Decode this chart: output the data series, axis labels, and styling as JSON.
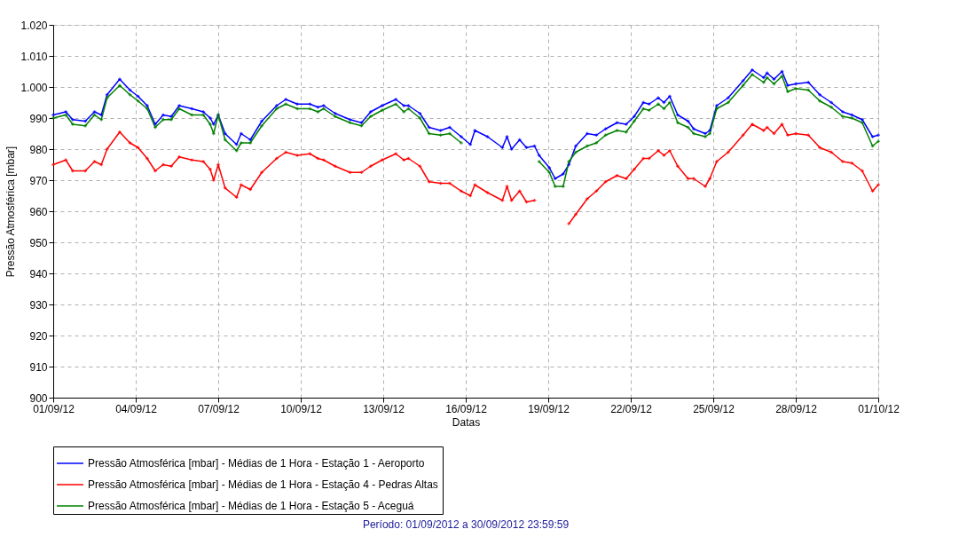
{
  "chart_data": {
    "type": "line",
    "xlabel": "Datas",
    "ylabel": "Pressão Atmosférica [mbar]",
    "annotations": [
      "Período: 01/09/2012 a 30/09/2012 23:59:59"
    ],
    "x": [
      "2012-09-01T00:00",
      "2012-09-01T11:00",
      "2012-09-01T17:00",
      "2012-09-02T04:00",
      "2012-09-02T12:00",
      "2012-09-02T18:00",
      "2012-09-02T23:00",
      "2012-09-03T10:00",
      "2012-09-03T19:00",
      "2012-09-04T02:00",
      "2012-09-04T10:00",
      "2012-09-04T17:00",
      "2012-09-05T00:00",
      "2012-09-05T07:00",
      "2012-09-05T14:00",
      "2012-09-06T01:00",
      "2012-09-06T11:00",
      "2012-09-06T17:00",
      "2012-09-06T20:00",
      "2012-09-07T00:00",
      "2012-09-07T06:00",
      "2012-09-07T16:00",
      "2012-09-07T20:00",
      "2012-09-08T04:00",
      "2012-09-08T14:00",
      "2012-09-09T03:00",
      "2012-09-09T11:00",
      "2012-09-09T21:00",
      "2012-09-10T08:00",
      "2012-09-10T15:00",
      "2012-09-10T20:00",
      "2012-09-11T06:00",
      "2012-09-11T19:00",
      "2012-09-12T05:00",
      "2012-09-12T13:00",
      "2012-09-12T23:00",
      "2012-09-13T11:00",
      "2012-09-13T18:00",
      "2012-09-13T22:00",
      "2012-09-14T08:00",
      "2012-09-14T16:00",
      "2012-09-15T02:00",
      "2012-09-15T10:00",
      "2012-09-15T20:00",
      "2012-09-16T04:00",
      "2012-09-16T08:00",
      "2012-09-16T19:00",
      "2012-09-17T08:00",
      "2012-09-17T12:00",
      "2012-09-17T16:00",
      "2012-09-17T23:00",
      "2012-09-18T05:00",
      "2012-09-18T12:00",
      "2012-09-18T16:00",
      "2012-09-19T01:00",
      "2012-09-19T06:00",
      "2012-09-19T13:00",
      "2012-09-19T18:00",
      "2012-09-20T00:00",
      "2012-09-20T10:00",
      "2012-09-20T18:00",
      "2012-09-21T02:00",
      "2012-09-21T12:00",
      "2012-09-21T20:00",
      "2012-09-22T03:00",
      "2012-09-22T11:00",
      "2012-09-22T16:00",
      "2012-09-23T00:00",
      "2012-09-23T05:00",
      "2012-09-23T10:00",
      "2012-09-23T17:00",
      "2012-09-24T02:00",
      "2012-09-24T07:00",
      "2012-09-24T17:00",
      "2012-09-24T21:00",
      "2012-09-25T03:00",
      "2012-09-25T13:00",
      "2012-09-26T02:00",
      "2012-09-26T10:00",
      "2012-09-26T20:00",
      "2012-09-26T23:00",
      "2012-09-27T05:00",
      "2012-09-27T12:00",
      "2012-09-27T17:00",
      "2012-09-28T00:00",
      "2012-09-28T11:00",
      "2012-09-28T21:00",
      "2012-09-29T07:00",
      "2012-09-29T17:00",
      "2012-09-30T01:00",
      "2012-09-30T10:00",
      "2012-09-30T19:00",
      "2012-10-01T00:00"
    ],
    "series": [
      {
        "name": "Pressão Atmosférica [mbar] - Médias de 1 Hora - Estação 1 - Aeroporto",
        "color": "#0000ff",
        "values": [
          991,
          992,
          989.5,
          989,
          992,
          991,
          997.5,
          1002.5,
          999,
          997,
          994,
          988,
          991,
          990.5,
          994,
          993,
          992,
          990,
          988,
          991,
          985,
          981.5,
          985,
          983,
          989,
          994,
          996,
          994.5,
          994.5,
          993.5,
          994,
          991.5,
          989.5,
          988.5,
          992,
          994,
          996,
          994,
          994,
          991.5,
          987,
          986,
          987,
          984,
          981.5,
          986,
          984,
          980.5,
          984,
          980,
          983,
          980.5,
          981,
          978,
          974,
          970.5,
          972,
          975,
          981,
          985,
          984.5,
          986.5,
          988.5,
          988,
          990.5,
          995,
          994.5,
          996.5,
          995,
          997,
          991,
          989,
          986.5,
          985,
          986,
          994,
          996.5,
          1002,
          1005.5,
          1003,
          1004.5,
          1002.5,
          1005,
          1000.5,
          1001,
          1001.5,
          997.5,
          995,
          992,
          991,
          989.5,
          984,
          984.5
        ]
      },
      {
        "name": "Pressão Atmosférica [mbar] - Médias de 1 Hora - Estação 4 - Pedras Altas",
        "color": "#ff0000",
        "values": [
          975,
          976.5,
          973,
          973,
          976,
          975,
          980,
          985.5,
          982,
          980.5,
          977,
          973,
          975,
          974.5,
          977.5,
          976.5,
          976,
          973.5,
          970,
          975,
          967.5,
          964.5,
          968.5,
          967,
          972.5,
          977,
          979,
          978,
          978.5,
          977,
          976.5,
          974.5,
          972.5,
          972.5,
          974.5,
          976.5,
          978.5,
          976.5,
          977,
          974.5,
          969.5,
          969,
          969,
          966.5,
          965,
          968.5,
          966,
          963.5,
          968,
          963.5,
          966.5,
          963,
          963.5,
          null,
          null,
          null,
          null,
          956,
          959,
          964,
          966.5,
          969.5,
          971.5,
          970.5,
          973.5,
          977,
          977,
          979.5,
          978,
          979.5,
          974.5,
          970.5,
          970.5,
          968,
          970.5,
          976,
          979,
          984.5,
          988,
          986,
          987,
          985,
          988,
          984.5,
          985,
          984.5,
          980.5,
          979,
          976,
          975.5,
          973,
          966.5,
          968.5
        ]
      },
      {
        "name": "Pressão Atmosférica [mbar] - Médias de 1 Hora - Estação 5 - Aceguá",
        "color": "#008000",
        "values": [
          990,
          991,
          988,
          987.5,
          991,
          989.5,
          996.5,
          1000.5,
          997.5,
          995.5,
          993,
          987,
          989.5,
          989.5,
          993,
          991,
          991,
          988,
          985,
          991,
          983,
          979.5,
          982,
          982,
          987.5,
          993,
          994.5,
          993,
          993,
          992,
          993,
          990.5,
          988.5,
          987.5,
          990.5,
          992.5,
          994.5,
          992,
          993,
          990,
          985,
          984.5,
          985,
          982,
          null,
          null,
          null,
          null,
          null,
          null,
          null,
          null,
          null,
          976,
          972.5,
          968,
          968,
          976,
          979,
          981,
          982,
          984.5,
          986,
          985.5,
          989,
          993,
          992.5,
          994.5,
          993,
          995,
          988.5,
          987,
          985,
          984,
          985,
          993,
          995,
          1000.5,
          1004,
          1001.5,
          1003,
          1001,
          1003.5,
          998.5,
          999.5,
          999,
          995.5,
          993.5,
          990.5,
          990,
          988.5,
          981,
          982.5
        ]
      }
    ],
    "ylim": [
      900,
      1020
    ],
    "yticks": [
      900,
      910,
      920,
      930,
      940,
      950,
      960,
      970,
      980,
      990,
      {
        "value": 1000,
        "label": "1.000"
      },
      {
        "value": 1010,
        "label": "1.010"
      },
      {
        "value": 1020,
        "label": "1.020"
      }
    ],
    "xlim": [
      "2012-09-01",
      "2012-10-01"
    ],
    "xticks": [
      {
        "value": "2012-09-01",
        "label": "01/09/12"
      },
      {
        "value": "2012-09-04",
        "label": "04/09/12"
      },
      {
        "value": "2012-09-07",
        "label": "07/09/12"
      },
      {
        "value": "2012-09-10",
        "label": "10/09/12"
      },
      {
        "value": "2012-09-13",
        "label": "13/09/12"
      },
      {
        "value": "2012-09-16",
        "label": "16/09/12"
      },
      {
        "value": "2012-09-19",
        "label": "19/09/12"
      },
      {
        "value": "2012-09-22",
        "label": "22/09/12"
      },
      {
        "value": "2012-09-25",
        "label": "25/09/12"
      },
      {
        "value": "2012-09-28",
        "label": "28/09/12"
      },
      {
        "value": "2012-10-01",
        "label": "01/10/12"
      }
    ],
    "grid": true,
    "legend": "bottom",
    "marker": "cross",
    "line_style": "solid"
  }
}
